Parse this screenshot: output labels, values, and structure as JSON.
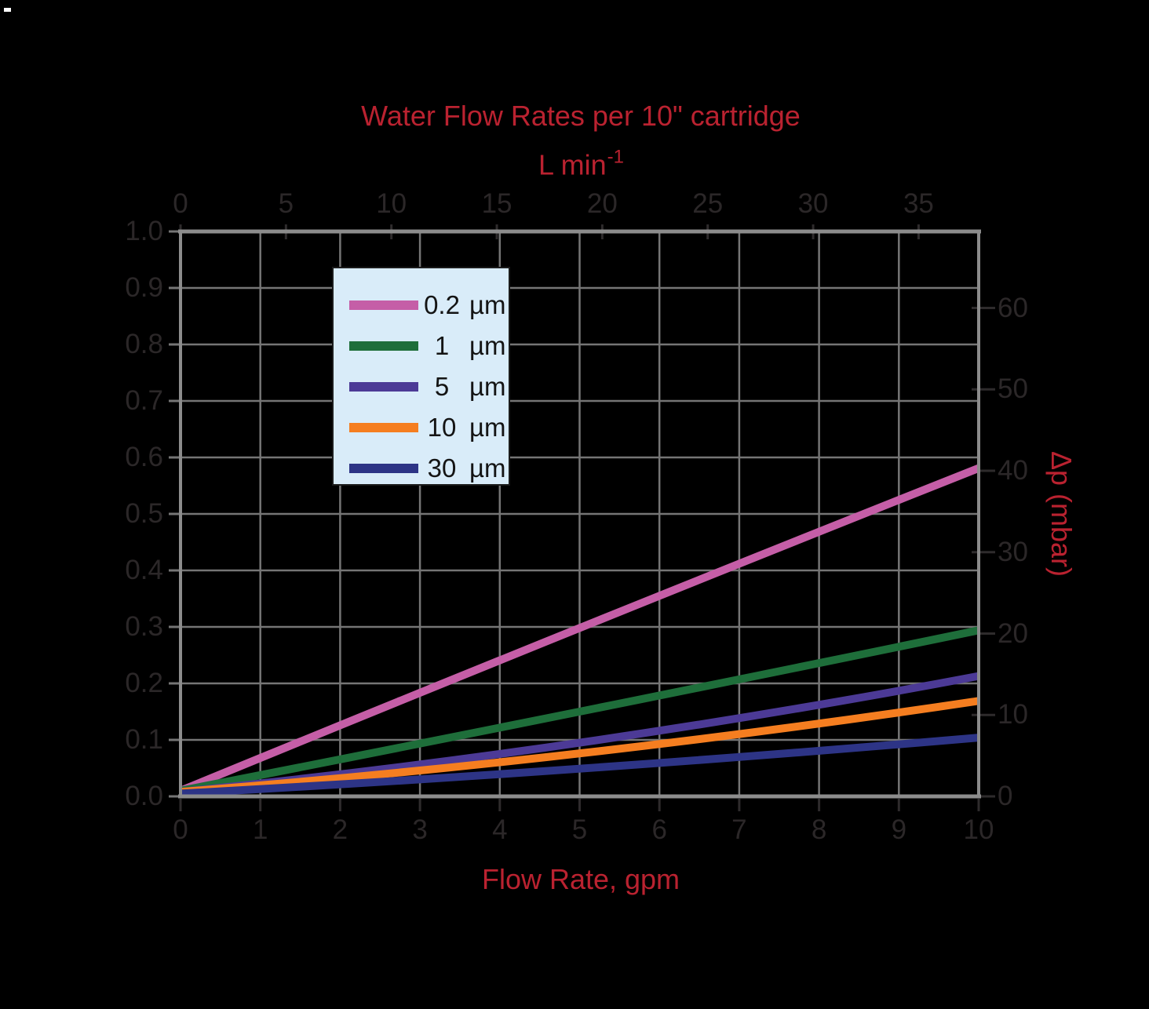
{
  "page": {
    "background": "#000000",
    "corner_mark_color": "#ffffff"
  },
  "colors": {
    "accent_red": "#ba2230",
    "tick_text": "#2b2728",
    "grid": "#757575",
    "spine": "#8c8c8c",
    "tick_mark_dark": "#2e2b2c",
    "tick_mark_gray": "#757575",
    "legend_bg": "#d9ecf9",
    "legend_border": "#1b1b1b"
  },
  "title": "Water Flow Rates per 10\" cartridge",
  "top_axis": {
    "label_main": "L min",
    "label_sup": "-1",
    "ticks": [
      "0",
      "5",
      "10",
      "15",
      "20",
      "25",
      "30",
      "35"
    ]
  },
  "left_axis": {
    "ticks": [
      "1.0",
      "0.9",
      "0.8",
      "0.7",
      "0.6",
      "0.5",
      "0.4",
      "0.3",
      "0.2",
      "0.1",
      "0.0"
    ]
  },
  "right_axis": {
    "label": "Δp (mbar)",
    "ticks": [
      "60",
      "50",
      "40",
      "30",
      "20",
      "10",
      "0"
    ]
  },
  "bottom_axis": {
    "label": "Flow Rate, gpm",
    "ticks": [
      "0",
      "1",
      "2",
      "3",
      "4",
      "5",
      "6",
      "7",
      "8",
      "9",
      "10"
    ]
  },
  "legend": {
    "entries": [
      {
        "value": "0.2",
        "unit": "µm",
        "color": "#c55ea7"
      },
      {
        "value": "1",
        "unit": "µm",
        "color": "#1e6e3a"
      },
      {
        "value": "5",
        "unit": "µm",
        "color": "#4c3a96"
      },
      {
        "value": "10",
        "unit": "µm",
        "color": "#f57e20"
      },
      {
        "value": "30",
        "unit": "µm",
        "color": "#2d3486"
      }
    ]
  },
  "chart_data": {
    "type": "line",
    "title": "Water Flow Rates per 10\" cartridge",
    "xlabel_bottom": "Flow Rate, gpm",
    "xlabel_top": "L min⁻¹",
    "ylabel_right": "Δp (mbar)",
    "x_axis_gpm_range": [
      0,
      10
    ],
    "x_axis_lmin_range": [
      0,
      37.85
    ],
    "y_axis_left_range": [
      0,
      1.0
    ],
    "y_axis_right_mbar_range": [
      0,
      69.4
    ],
    "grid": true,
    "legend_position": "upper left inside plot",
    "x_gpm": [
      0,
      5,
      10
    ],
    "series": [
      {
        "name": "0.2 µm",
        "color": "#c55ea7",
        "y": [
          0.01,
          0.298,
          0.581
        ]
      },
      {
        "name": "1 µm",
        "color": "#1e6e3a",
        "y": [
          0.01,
          0.15,
          0.294
        ]
      },
      {
        "name": "5 µm",
        "color": "#4c3a96",
        "y": [
          0.008,
          0.095,
          0.213
        ]
      },
      {
        "name": "10 µm",
        "color": "#f57e20",
        "y": [
          0.008,
          0.076,
          0.169
        ]
      },
      {
        "name": "30 µm",
        "color": "#2d3486",
        "y": [
          0.005,
          0.049,
          0.104
        ]
      }
    ]
  }
}
